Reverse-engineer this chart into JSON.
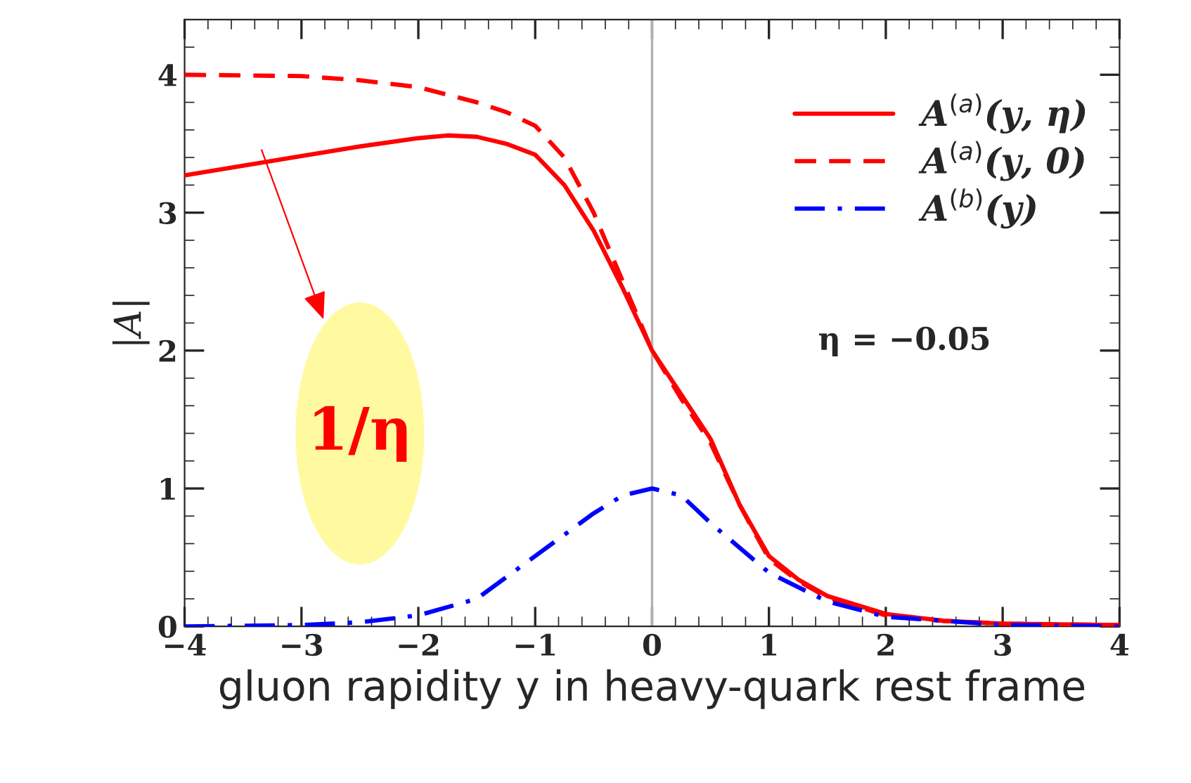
{
  "chart_data": {
    "type": "line",
    "xlabel": "gluon rapidity y in heavy-quark rest frame",
    "ylabel": "|A|",
    "xlim": [
      -4,
      4
    ],
    "xticks": [
      {
        "value": -4,
        "label": "−4"
      },
      {
        "value": -3,
        "label": "−3"
      },
      {
        "value": -2,
        "label": "−2"
      },
      {
        "value": -1,
        "label": "−1"
      },
      0,
      1,
      2,
      3,
      4
    ],
    "ylim": [
      0,
      4.4
    ],
    "yticks": [
      0,
      1,
      2,
      3,
      4
    ],
    "grid": false,
    "legend": "top right",
    "ref_lines": [
      {
        "axis": "x",
        "value": 0,
        "color": "#b0b0b0"
      }
    ],
    "annotations": [
      "1/η",
      "η = −0.05"
    ],
    "series": [
      {
        "name": "A$^{(a)}$(y, η)",
        "color": "#ff0000",
        "line_style": "solid",
        "x": [
          -4,
          -3.5,
          -3,
          -2.5,
          -2,
          -1.75,
          -1.5,
          -1.25,
          -1,
          -0.75,
          -0.5,
          -0.25,
          0,
          0.25,
          0.5,
          0.75,
          1,
          1.25,
          1.5,
          2,
          2.5,
          3,
          4
        ],
        "values": [
          3.27,
          3.34,
          3.41,
          3.48,
          3.54,
          3.56,
          3.55,
          3.5,
          3.42,
          3.2,
          2.87,
          2.45,
          2.0,
          1.68,
          1.36,
          0.88,
          0.51,
          0.34,
          0.22,
          0.09,
          0.04,
          0.02,
          0.01
        ]
      },
      {
        "name": "A$^{(a)}$(y, 0)",
        "color": "#ff0000",
        "line_style": "dashed",
        "x": [
          -4,
          -3,
          -2.5,
          -2,
          -1.5,
          -1.25,
          -1,
          -0.75,
          -0.5,
          -0.25,
          0,
          0.25,
          0.5,
          0.75,
          1,
          1.25,
          1.5,
          2,
          2.5,
          3,
          4
        ],
        "values": [
          4.0,
          3.99,
          3.96,
          3.91,
          3.8,
          3.73,
          3.63,
          3.4,
          3.0,
          2.5,
          2.0,
          1.65,
          1.33,
          0.88,
          0.49,
          0.33,
          0.21,
          0.08,
          0.04,
          0.02,
          0.01
        ]
      },
      {
        "name": "A$^{(b)}$(y)",
        "color": "#0000ff",
        "line_style": "dashdot",
        "x": [
          -4,
          -3,
          -2.5,
          -2,
          -1.5,
          -1,
          -0.5,
          -0.25,
          0,
          0.25,
          0.5,
          1,
          1.5,
          2,
          3,
          4
        ],
        "values": [
          0,
          0.01,
          0.03,
          0.08,
          0.2,
          0.51,
          0.82,
          0.95,
          1.0,
          0.95,
          0.75,
          0.39,
          0.18,
          0.07,
          0.01,
          0
        ]
      }
    ]
  }
}
